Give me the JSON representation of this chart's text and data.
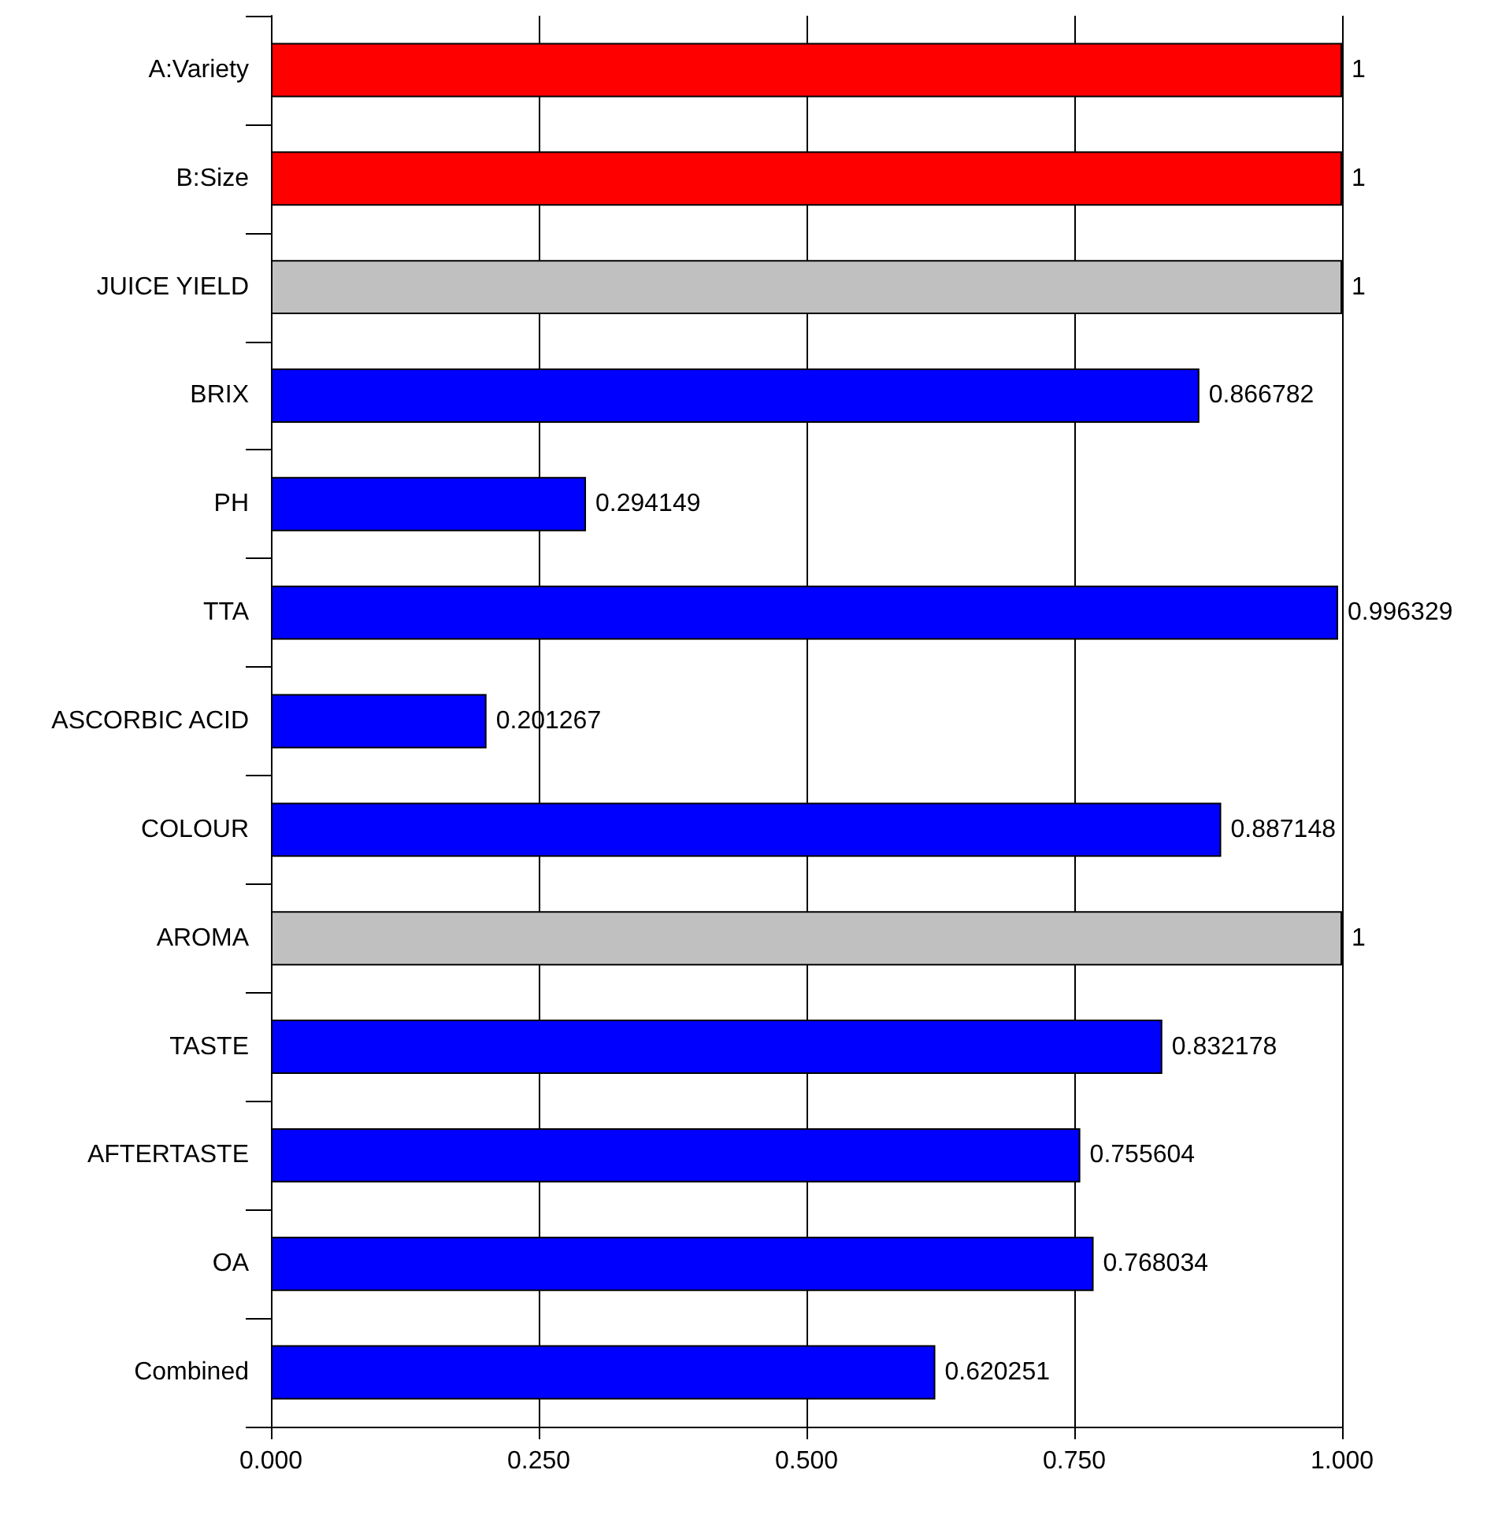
{
  "chart_data": {
    "type": "bar",
    "orientation": "horizontal",
    "categories": [
      "A:Variety",
      "B:Size",
      "JUICE YIELD",
      "BRIX",
      "PH",
      "TTA",
      "ASCORBIC ACID",
      "COLOUR",
      "AROMA",
      "TASTE",
      "AFTERTASTE",
      "OA",
      "Combined"
    ],
    "values": [
      1,
      1,
      1,
      0.866782,
      0.294149,
      0.996329,
      0.201267,
      0.887148,
      1,
      0.832178,
      0.755604,
      0.768034,
      0.620251
    ],
    "colors": [
      "#ff0000",
      "#ff0000",
      "#c0c0c0",
      "#0000ff",
      "#0000ff",
      "#0000ff",
      "#0000ff",
      "#0000ff",
      "#c0c0c0",
      "#0000ff",
      "#0000ff",
      "#0000ff",
      "#0000ff"
    ],
    "xlim": [
      0,
      1
    ],
    "xticks": [
      {
        "value": 0,
        "label": "0.000"
      },
      {
        "value": 0.25,
        "label": "0.250"
      },
      {
        "value": 0.5,
        "label": "0.500"
      },
      {
        "value": 0.75,
        "label": "0.750"
      },
      {
        "value": 1,
        "label": "1.000"
      }
    ],
    "grid": "x",
    "data_labels": true
  }
}
